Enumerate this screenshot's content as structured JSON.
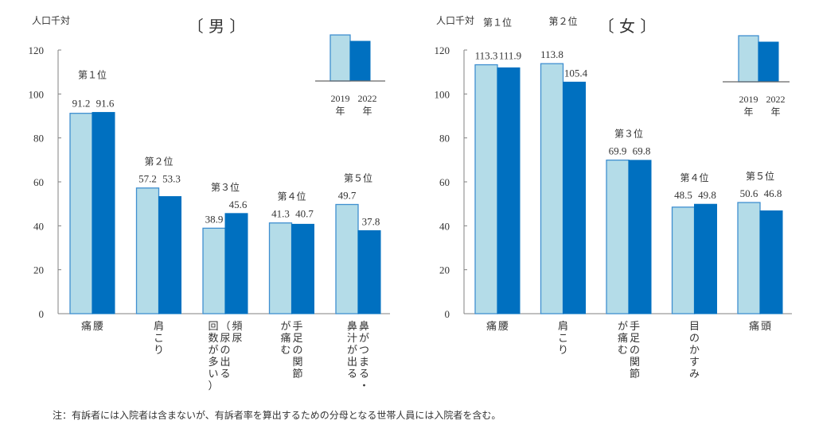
{
  "chart_data": [
    {
      "type": "bar",
      "title": "〔 男 〕",
      "ylabel": "人口千対",
      "ylim": [
        0,
        120
      ],
      "yticks": [
        0,
        20,
        40,
        60,
        80,
        100,
        120
      ],
      "categories": [
        [
          "腰",
          "痛"
        ],
        [
          "肩こり"
        ],
        [
          "頻尿",
          "（尿の出る",
          "回数が多い）"
        ],
        [
          "手足の関節",
          "が痛む"
        ],
        [
          "鼻がつまる・",
          "鼻汁が出る"
        ]
      ],
      "category_names": [
        "腰痛",
        "肩こり",
        "頻尿（尿の出る回数が多い）",
        "手足の関節が痛む",
        "鼻がつまる・鼻汁が出る"
      ],
      "ranks": [
        "第１位",
        "第２位",
        "第３位",
        "第４位",
        "第５位"
      ],
      "series": [
        {
          "name": "2019年",
          "values": [
            91.2,
            57.2,
            38.9,
            41.3,
            49.7
          ],
          "labels": [
            "91.2",
            "57.2",
            "38.9",
            "41.3",
            "49.7"
          ]
        },
        {
          "name": "2022年",
          "values": [
            91.6,
            53.3,
            45.6,
            40.7,
            37.8
          ],
          "labels": [
            "91.6",
            "53.3",
            "45.6",
            "40.7",
            "37.8"
          ]
        }
      ],
      "legend": {
        "placement": "top-right",
        "entries": [
          "2019",
          "2022"
        ],
        "suffix": "年"
      },
      "grid": false
    },
    {
      "type": "bar",
      "title": "〔 女 〕",
      "ylabel": "人口千対",
      "ylim": [
        0,
        120
      ],
      "yticks": [
        0,
        20,
        40,
        60,
        80,
        100,
        120
      ],
      "categories": [
        [
          "腰",
          "痛"
        ],
        [
          "肩こり"
        ],
        [
          "手足の関節",
          "が痛む"
        ],
        [
          "目のかすみ"
        ],
        [
          "頭",
          "痛"
        ]
      ],
      "category_names": [
        "腰痛",
        "肩こり",
        "手足の関節が痛む",
        "目のかすみ",
        "頭痛"
      ],
      "ranks": [
        "第１位",
        "第２位",
        "第３位",
        "第４位",
        "第５位"
      ],
      "series": [
        {
          "name": "2019年",
          "values": [
            113.3,
            113.8,
            69.9,
            48.5,
            50.6
          ],
          "labels": [
            "113.3",
            "113.8",
            "69.9",
            "48.5",
            "50.6"
          ]
        },
        {
          "name": "2022年",
          "values": [
            111.9,
            105.4,
            69.8,
            49.8,
            46.8
          ],
          "labels": [
            "111.9",
            "105.4",
            "69.8",
            "49.8",
            "46.8"
          ]
        }
      ],
      "legend": {
        "placement": "top-right",
        "entries": [
          "2019",
          "2022"
        ],
        "suffix": "年"
      },
      "grid": false
    }
  ],
  "colors": {
    "series_2019_fill": "#b4dce8",
    "series_2019_stroke": "#3f8fd0",
    "series_2022_fill": "#0070c0",
    "axis": "#808080"
  },
  "note": "注：有訴者には入院者は含まないが、有訴者率を算出するための分母となる世帯人員には入院者を含む。"
}
